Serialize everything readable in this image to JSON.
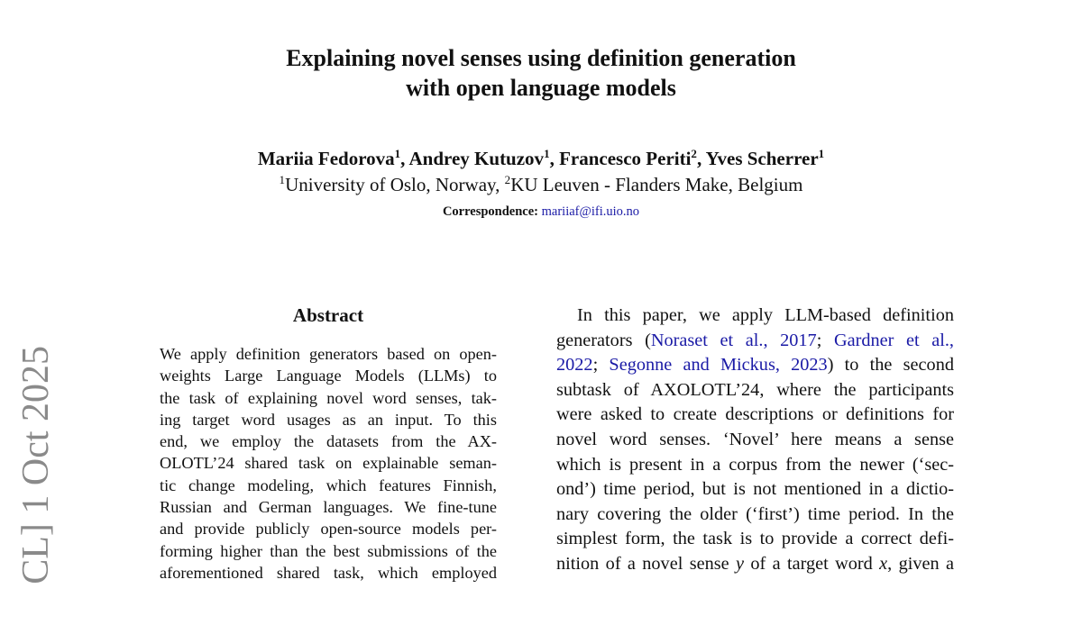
{
  "title_lines": [
    "Explaining novel senses using definition generation",
    "with open language models"
  ],
  "authors": [
    {
      "name": "Mariia Fedorova",
      "aff": "1"
    },
    {
      "name": "Andrey Kutuzov",
      "aff": "1"
    },
    {
      "name": "Francesco Periti",
      "aff": "2"
    },
    {
      "name": "Yves Scherrer",
      "aff": "1"
    }
  ],
  "affiliations": [
    {
      "num": "1",
      "name": "University of Oslo, Norway, "
    },
    {
      "num": "2",
      "name": "KU Leuven - Flanders Make, Belgium"
    }
  ],
  "correspondence": {
    "label": "Correspondence:",
    "email": "mariiaf@ifi.uio.no"
  },
  "arxiv_stamp": "CL]  1 Oct 2025",
  "abstract": {
    "heading": "Abstract",
    "lines": [
      "We apply definition generators based on open-",
      "weights Large Language Models (LLMs) to",
      "the task of explaining novel word senses, tak-",
      "ing target word usages as an input.  To this",
      "end, we employ the datasets from the AX-",
      "OLOTL’24 shared task on explainable seman-",
      "tic change modeling, which features Finnish,",
      "Russian and German languages. We fine-tune",
      "and provide publicly open-source models per-",
      "forming higher than the best submissions of the",
      "aforementioned shared task, which employed"
    ]
  },
  "intro": {
    "l1": "In this paper, we apply LLM-based definition",
    "l2_pre": "generators (",
    "cite1": "Noraset et al., 2017",
    "sep1": "; ",
    "cite2a": "Gardner et al.,",
    "cite2b": "2022",
    "sep2": "; ",
    "cite3": "Segonne and Mickus, 2023",
    "l3_post": ") to the second",
    "lines": [
      "subtask of AXOLOTL’24, where the participants",
      "were asked to create descriptions or definitions for",
      "novel word senses.  ‘Novel’ here means a sense",
      "which is present in a corpus from the newer (‘sec-",
      "ond’) time period, but is not mentioned in a dictio-",
      "nary covering the older (‘first’) time period. In the",
      "simplest form, the task is to provide a correct defi-"
    ],
    "last_pre": "nition of a novel sense ",
    "var_y": "y",
    "last_mid": " of a target word ",
    "var_x": "x",
    "last_post": ", given a"
  }
}
